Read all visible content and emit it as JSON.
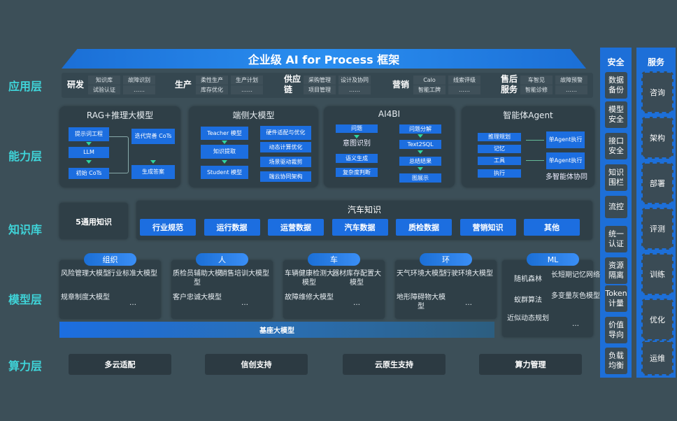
{
  "title": "企业级 AI for Process 框架",
  "layers": [
    "应用层",
    "能力层",
    "知识库",
    "模型层",
    "算力层"
  ],
  "app": [
    {
      "name": "研发",
      "items": [
        "知识库",
        "故障识别",
        "试验认证",
        "……"
      ]
    },
    {
      "name": "生产",
      "items": [
        "柔性生产",
        "生产计划",
        "库存优化",
        "……"
      ]
    },
    {
      "name": "供应链",
      "items": [
        "采购管理",
        "设计及协同",
        "项目管理",
        "……"
      ]
    },
    {
      "name": "营销",
      "items": [
        "Calo",
        "线索评级",
        "智能工牌",
        "……"
      ]
    },
    {
      "name": "售后服务",
      "items": [
        "车智见",
        "故障预警",
        "智能诊修",
        "……"
      ]
    }
  ],
  "capability": {
    "rag": {
      "title": "RAG+推理大模型",
      "items": [
        "提示词工程",
        "LLM",
        "初始 CoTs",
        "迭代完善 CoTs",
        "生成答案"
      ]
    },
    "edge": {
      "title": "端侧大模型",
      "items": [
        "Teacher 模型",
        "知识提取",
        "Student 模型",
        "硬件适配与优化",
        "动态计算优化",
        "场景驱动裁剪",
        "端云协同架构"
      ]
    },
    "ai4bi": {
      "title": "AI4BI",
      "items": [
        "问题",
        "意图识别",
        "语义生成",
        "复杂度判断",
        "问题分解",
        "Text2SQL",
        "总结结果",
        "图展示"
      ]
    },
    "agent": {
      "title": "智能体Agent",
      "items": [
        "推理规划",
        "记忆",
        "工具",
        "执行",
        "单Agent执行",
        "单Agent执行"
      ],
      "footer": "多智能体协同"
    }
  },
  "knowledge": {
    "general": "5通用知识",
    "auto_title": "汽车知识",
    "items": [
      "行业规范",
      "运行数据",
      "运营数据",
      "汽车数据",
      "质检数据",
      "营销知识",
      "其他"
    ]
  },
  "models": [
    {
      "tag": "组织",
      "items": [
        "风险管理大模型",
        "行业标准大模型",
        "规章制度大模型",
        "…"
      ]
    },
    {
      "tag": "人",
      "items": [
        "质检员辅助大模型",
        "销售培训大模型",
        "客户忠诚大模型",
        "…"
      ]
    },
    {
      "tag": "车",
      "items": [
        "车辆健康检测大模型",
        "器材库存配置大模型",
        "故障维修大模型",
        "…"
      ]
    },
    {
      "tag": "环",
      "items": [
        "天气环境大模型",
        "行驶环境大模型",
        "地形障碍物大模型",
        "…"
      ]
    },
    {
      "tag": "ML",
      "items": [
        "随机森林",
        "长短期记忆网络",
        "蚁群算法",
        "多变量灰色模型",
        "近似动态规划",
        "…"
      ]
    }
  ],
  "base_model": "基座大模型",
  "compute": [
    "多云适配",
    "信创支持",
    "云原生支持",
    "算力管理"
  ],
  "security": {
    "title": "安全",
    "items": [
      "数据备份",
      "模型安全",
      "接口安全",
      "知识围栏",
      "流控",
      "统一认证",
      "资源隔离",
      "Token计量",
      "价值导向",
      "负载均衡"
    ]
  },
  "service": {
    "title": "服务",
    "items": [
      "咨询",
      "架构",
      "部署",
      "评测",
      "训练",
      "优化",
      "运维"
    ]
  },
  "colors": {
    "background": "#3c4f58",
    "accent": "#1c6ee0",
    "layer_label": "#3fd3d8"
  }
}
